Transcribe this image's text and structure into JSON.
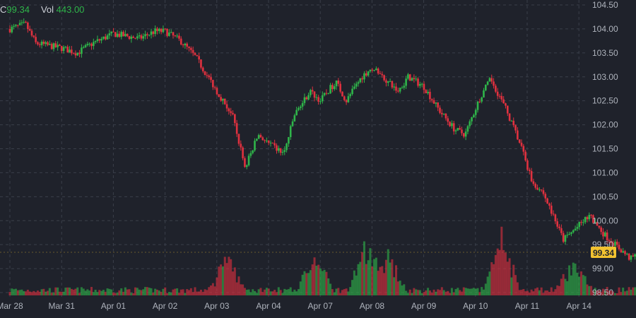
{
  "header": {
    "close_label": "C",
    "close_value": "99.34",
    "volume_label": "Vol",
    "volume_value": "443.00"
  },
  "price_tag": "99.34",
  "colors": {
    "background": "#1f222b",
    "grid": "#3a3f4a",
    "up": "#2fb54a",
    "down": "#e0313f",
    "axis_text": "#aeb3bc",
    "price_tag_bg": "#f2c230",
    "price_tag_text": "#1f222b"
  },
  "chart_data": {
    "type": "candlestick",
    "title": "",
    "xlabel": "",
    "ylabel": "",
    "ylim": [
      98.4,
      104.6
    ],
    "y_ticks": [
      "104.50",
      "104.00",
      "103.50",
      "103.00",
      "102.50",
      "102.00",
      "101.50",
      "101.00",
      "100.50",
      "100.00",
      "99.50",
      "99.00",
      "98.50"
    ],
    "x_ticks": [
      "Mar 28",
      "Mar 31",
      "Apr 01",
      "Apr 02",
      "Apr 03",
      "Apr 04",
      "Apr 07",
      "Apr 08",
      "Apr 09",
      "Apr 10",
      "Apr 11",
      "Apr 14"
    ],
    "grid": true,
    "last_price": 99.34,
    "price_path": [
      [
        0,
        104.0
      ],
      [
        0.3,
        104.1
      ],
      [
        0.5,
        103.7
      ],
      [
        1.0,
        103.6
      ],
      [
        1.3,
        103.5
      ],
      [
        1.6,
        103.7
      ],
      [
        2.0,
        103.9
      ],
      [
        2.5,
        103.8
      ],
      [
        2.8,
        103.95
      ],
      [
        3.0,
        103.95
      ],
      [
        3.3,
        103.75
      ],
      [
        3.6,
        103.4
      ],
      [
        4.0,
        102.7
      ],
      [
        4.3,
        102.2
      ],
      [
        4.55,
        101.1
      ],
      [
        4.8,
        101.8
      ],
      [
        5.0,
        101.6
      ],
      [
        5.3,
        101.4
      ],
      [
        5.5,
        102.2
      ],
      [
        5.8,
        102.7
      ],
      [
        6.0,
        102.5
      ],
      [
        6.3,
        102.9
      ],
      [
        6.5,
        102.5
      ],
      [
        6.8,
        103.0
      ],
      [
        7.0,
        103.2
      ],
      [
        7.3,
        102.9
      ],
      [
        7.5,
        102.7
      ],
      [
        7.7,
        103.0
      ],
      [
        8.0,
        102.8
      ],
      [
        8.3,
        102.3
      ],
      [
        8.6,
        101.9
      ],
      [
        8.8,
        101.8
      ],
      [
        9.1,
        102.6
      ],
      [
        9.3,
        102.95
      ],
      [
        9.6,
        102.3
      ],
      [
        9.9,
        101.5
      ],
      [
        10.1,
        100.8
      ],
      [
        10.3,
        100.6
      ],
      [
        10.5,
        100.1
      ],
      [
        10.7,
        99.6
      ],
      [
        10.9,
        99.8
      ],
      [
        11.2,
        100.1
      ],
      [
        11.5,
        99.7
      ],
      [
        11.8,
        99.4
      ],
      [
        12.0,
        99.2
      ],
      [
        12.2,
        99.34
      ]
    ],
    "volume_spikes": [
      [
        4.2,
        60
      ],
      [
        5.9,
        85
      ],
      [
        6.9,
        80
      ],
      [
        7.3,
        70
      ],
      [
        9.5,
        100
      ],
      [
        10.9,
        55
      ]
    ]
  }
}
